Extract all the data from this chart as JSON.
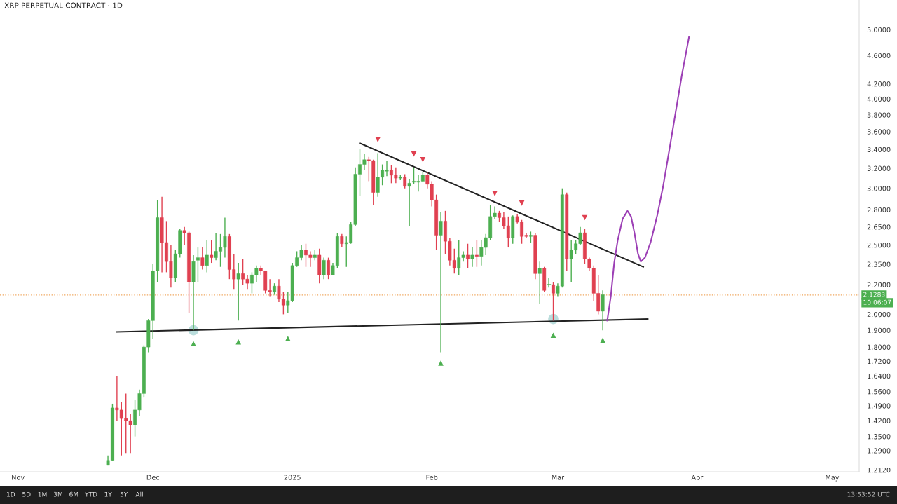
{
  "chart_data": {
    "type": "candlestick",
    "title": "XRP PERPETUAL CONTRACT · 1D",
    "log": true,
    "xlim": [
      "2024-10-28",
      "2025-05-07"
    ],
    "xticks": [
      {
        "value": "2024-11-01",
        "label": "Nov"
      },
      {
        "value": "2024-12-01",
        "label": "Dec"
      },
      {
        "value": "2025-01-01",
        "label": "2025"
      },
      {
        "value": "2025-02-01",
        "label": "Feb"
      },
      {
        "value": "2025-03-01",
        "label": "Mar"
      },
      {
        "value": "2025-04-01",
        "label": "Apr"
      },
      {
        "value": "2025-05-01",
        "label": "May"
      }
    ],
    "ylim": [
      1.205,
      5.5
    ],
    "yticks": [
      {
        "value": 1.212,
        "label": "1.2120"
      },
      {
        "value": 1.29,
        "label": "1.2900"
      },
      {
        "value": 1.35,
        "label": "1.3500"
      },
      {
        "value": 1.42,
        "label": "1.4200"
      },
      {
        "value": 1.49,
        "label": "1.4900"
      },
      {
        "value": 1.56,
        "label": "1.5600"
      },
      {
        "value": 1.64,
        "label": "1.6400"
      },
      {
        "value": 1.72,
        "label": "1.7200"
      },
      {
        "value": 1.8,
        "label": "1.8000"
      },
      {
        "value": 1.9,
        "label": "1.9000"
      },
      {
        "value": 2.0,
        "label": "2.0000"
      },
      {
        "value": 2.2,
        "label": "2.2000"
      },
      {
        "value": 2.35,
        "label": "2.3500"
      },
      {
        "value": 2.5,
        "label": "2.5000"
      },
      {
        "value": 2.65,
        "label": "2.6500"
      },
      {
        "value": 2.8,
        "label": "2.8000"
      },
      {
        "value": 3.0,
        "label": "3.0000"
      },
      {
        "value": 3.2,
        "label": "3.2000"
      },
      {
        "value": 3.4,
        "label": "3.4000"
      },
      {
        "value": 3.6,
        "label": "3.6000"
      },
      {
        "value": 3.8,
        "label": "3.8000"
      },
      {
        "value": 4.0,
        "label": "4.0000"
      },
      {
        "value": 4.2,
        "label": "4.2000"
      },
      {
        "value": 4.6,
        "label": "4.6000"
      },
      {
        "value": 5.0,
        "label": "5.0000"
      }
    ],
    "grid": false,
    "legend": false,
    "ref_lines": [
      {
        "axis": "y",
        "value": 2.1283,
        "label": "2.1283",
        "color": "#f0a860",
        "line_style": "dotted"
      }
    ],
    "annotations": [
      "10:06:07",
      "1D",
      "5D",
      "1M",
      "3M",
      "6M",
      "YTD",
      "1Y",
      "5Y",
      "All",
      "13:53:52 UTC"
    ],
    "series": [
      {
        "x": [
          "2024-11-21",
          "2024-11-22",
          "2024-11-23",
          "2024-11-24",
          "2024-11-25",
          "2024-11-26",
          "2024-11-27",
          "2024-11-28",
          "2024-11-29",
          "2024-11-30",
          "2024-12-01",
          "2024-12-02",
          "2024-12-03",
          "2024-12-04",
          "2024-12-05",
          "2024-12-06",
          "2024-12-07",
          "2024-12-08",
          "2024-12-09",
          "2024-12-10",
          "2024-12-11",
          "2024-12-12",
          "2024-12-13",
          "2024-12-14",
          "2024-12-15",
          "2024-12-16",
          "2024-12-17",
          "2024-12-18",
          "2024-12-19",
          "2024-12-20",
          "2024-12-21",
          "2024-12-22",
          "2024-12-23",
          "2024-12-24",
          "2024-12-25",
          "2024-12-26",
          "2024-12-27",
          "2024-12-28",
          "2024-12-29",
          "2024-12-30",
          "2024-12-31",
          "2025-01-01",
          "2025-01-02",
          "2025-01-03",
          "2025-01-04",
          "2025-01-05",
          "2025-01-06",
          "2025-01-07",
          "2025-01-08",
          "2025-01-09",
          "2025-01-10",
          "2025-01-11",
          "2025-01-12",
          "2025-01-13",
          "2025-01-14",
          "2025-01-15",
          "2025-01-16",
          "2025-01-17",
          "2025-01-18",
          "2025-01-19",
          "2025-01-20",
          "2025-01-21",
          "2025-01-22",
          "2025-01-23",
          "2025-01-24",
          "2025-01-25",
          "2025-01-26",
          "2025-01-27",
          "2025-01-28",
          "2025-01-29",
          "2025-01-30",
          "2025-01-31",
          "2025-02-01",
          "2025-02-02",
          "2025-02-03",
          "2025-02-04",
          "2025-02-05",
          "2025-02-06",
          "2025-02-07",
          "2025-02-08",
          "2025-02-09",
          "2025-02-10",
          "2025-02-11",
          "2025-02-12",
          "2025-02-13",
          "2025-02-14",
          "2025-02-15",
          "2025-02-16",
          "2025-02-17",
          "2025-02-18",
          "2025-02-19",
          "2025-02-20",
          "2025-02-21",
          "2025-02-22",
          "2025-02-23",
          "2025-02-24",
          "2025-02-25",
          "2025-02-26",
          "2025-02-27",
          "2025-02-28",
          "2025-03-01",
          "2025-03-02",
          "2025-03-03",
          "2025-03-04",
          "2025-03-05",
          "2025-03-06",
          "2025-03-07",
          "2025-03-08",
          "2025-03-09",
          "2025-03-10",
          "2025-03-11"
        ],
        "ohlc": [
          [
            1.23,
            1.27,
            1.23,
            1.25
          ],
          [
            1.25,
            1.5,
            1.25,
            1.48
          ],
          [
            1.48,
            1.64,
            1.42,
            1.47
          ],
          [
            1.47,
            1.51,
            1.27,
            1.43
          ],
          [
            1.43,
            1.55,
            1.28,
            1.42
          ],
          [
            1.42,
            1.45,
            1.28,
            1.4
          ],
          [
            1.4,
            1.52,
            1.35,
            1.47
          ],
          [
            1.47,
            1.57,
            1.44,
            1.55
          ],
          [
            1.55,
            1.81,
            1.53,
            1.8
          ],
          [
            1.8,
            1.97,
            1.77,
            1.96
          ],
          [
            1.96,
            2.35,
            1.85,
            2.3
          ],
          [
            2.3,
            2.89,
            2.22,
            2.73
          ],
          [
            2.73,
            2.92,
            2.29,
            2.52
          ],
          [
            2.52,
            2.7,
            2.29,
            2.37
          ],
          [
            2.37,
            2.5,
            2.18,
            2.25
          ],
          [
            2.25,
            2.46,
            2.22,
            2.43
          ],
          [
            2.43,
            2.63,
            2.4,
            2.62
          ],
          [
            2.62,
            2.65,
            2.5,
            2.6
          ],
          [
            2.6,
            2.61,
            2.01,
            2.22
          ],
          [
            2.22,
            2.42,
            1.9,
            2.37
          ],
          [
            2.38,
            2.48,
            2.22,
            2.4
          ],
          [
            2.4,
            2.48,
            2.31,
            2.34
          ],
          [
            2.34,
            2.54,
            2.29,
            2.42
          ],
          [
            2.42,
            2.54,
            2.36,
            2.4
          ],
          [
            2.4,
            2.6,
            2.38,
            2.45
          ],
          [
            2.45,
            2.59,
            2.33,
            2.48
          ],
          [
            2.48,
            2.73,
            2.4,
            2.57
          ],
          [
            2.57,
            2.59,
            2.24,
            2.31
          ],
          [
            2.31,
            2.43,
            2.17,
            2.24
          ],
          [
            2.24,
            2.36,
            1.96,
            2.28
          ],
          [
            2.28,
            2.39,
            2.2,
            2.24
          ],
          [
            2.24,
            2.27,
            2.17,
            2.21
          ],
          [
            2.21,
            2.29,
            2.14,
            2.27
          ],
          [
            2.27,
            2.34,
            2.22,
            2.32
          ],
          [
            2.32,
            2.34,
            2.27,
            2.3
          ],
          [
            2.3,
            2.3,
            2.14,
            2.16
          ],
          [
            2.16,
            2.24,
            2.12,
            2.15
          ],
          [
            2.15,
            2.21,
            2.13,
            2.19
          ],
          [
            2.19,
            2.24,
            2.08,
            2.1
          ],
          [
            2.1,
            2.15,
            2.0,
            2.06
          ],
          [
            2.06,
            2.15,
            2.01,
            2.09
          ],
          [
            2.09,
            2.36,
            2.08,
            2.34
          ],
          [
            2.34,
            2.45,
            2.33,
            2.4
          ],
          [
            2.4,
            2.5,
            2.38,
            2.46
          ],
          [
            2.46,
            2.51,
            2.33,
            2.42
          ],
          [
            2.42,
            2.45,
            2.33,
            2.4
          ],
          [
            2.4,
            2.46,
            2.38,
            2.42
          ],
          [
            2.42,
            2.47,
            2.21,
            2.27
          ],
          [
            2.27,
            2.4,
            2.24,
            2.38
          ],
          [
            2.38,
            2.4,
            2.24,
            2.27
          ],
          [
            2.27,
            2.36,
            2.27,
            2.34
          ],
          [
            2.34,
            2.6,
            2.32,
            2.57
          ],
          [
            2.57,
            2.59,
            2.48,
            2.51
          ],
          [
            2.51,
            2.57,
            2.33,
            2.52
          ],
          [
            2.52,
            2.69,
            2.51,
            2.67
          ],
          [
            2.67,
            3.21,
            2.66,
            3.14
          ],
          [
            3.14,
            3.41,
            2.93,
            3.24
          ],
          [
            3.24,
            3.35,
            3.18,
            3.29
          ],
          [
            3.29,
            3.32,
            3.07,
            3.28
          ],
          [
            3.28,
            3.29,
            2.84,
            2.96
          ],
          [
            2.96,
            3.36,
            2.92,
            3.11
          ],
          [
            3.11,
            3.24,
            3.03,
            3.18
          ],
          [
            3.17,
            3.28,
            3.12,
            3.18
          ],
          [
            3.18,
            3.23,
            3.05,
            3.13
          ],
          [
            3.13,
            3.21,
            3.05,
            3.1
          ],
          [
            3.1,
            3.13,
            3.08,
            3.11
          ],
          [
            3.11,
            3.14,
            3.0,
            3.02
          ],
          [
            3.02,
            3.09,
            2.66,
            3.05
          ],
          [
            3.06,
            3.21,
            3.04,
            3.07
          ],
          [
            3.06,
            3.13,
            2.97,
            3.07
          ],
          [
            3.07,
            3.16,
            3.06,
            3.13
          ],
          [
            3.13,
            3.16,
            3.0,
            3.04
          ],
          [
            3.04,
            3.07,
            2.83,
            2.89
          ],
          [
            2.89,
            2.94,
            2.46,
            2.58
          ],
          [
            2.58,
            2.78,
            1.77,
            2.7
          ],
          [
            2.7,
            2.79,
            2.43,
            2.53
          ],
          [
            2.53,
            2.56,
            2.34,
            2.38
          ],
          [
            2.38,
            2.47,
            2.28,
            2.32
          ],
          [
            2.32,
            2.54,
            2.27,
            2.4
          ],
          [
            2.4,
            2.45,
            2.37,
            2.42
          ],
          [
            2.42,
            2.51,
            2.32,
            2.39
          ],
          [
            2.39,
            2.48,
            2.33,
            2.42
          ],
          [
            2.42,
            2.54,
            2.33,
            2.41
          ],
          [
            2.41,
            2.54,
            2.34,
            2.48
          ],
          [
            2.48,
            2.59,
            2.42,
            2.56
          ],
          [
            2.56,
            2.84,
            2.54,
            2.74
          ],
          [
            2.74,
            2.83,
            2.72,
            2.77
          ],
          [
            2.77,
            2.79,
            2.69,
            2.73
          ],
          [
            2.73,
            2.78,
            2.63,
            2.66
          ],
          [
            2.66,
            2.74,
            2.48,
            2.56
          ],
          [
            2.56,
            2.75,
            2.51,
            2.74
          ],
          [
            2.74,
            2.76,
            2.68,
            2.69
          ],
          [
            2.69,
            2.71,
            2.51,
            2.57
          ],
          [
            2.58,
            2.6,
            2.56,
            2.57
          ],
          [
            2.57,
            2.61,
            2.52,
            2.58
          ],
          [
            2.58,
            2.6,
            2.24,
            2.28
          ],
          [
            2.28,
            2.37,
            2.07,
            2.32
          ],
          [
            2.32,
            2.33,
            2.15,
            2.16
          ],
          [
            2.2,
            2.25,
            2.18,
            2.2
          ],
          [
            2.2,
            2.22,
            1.96,
            2.14
          ],
          [
            2.14,
            2.21,
            2.12,
            2.19
          ],
          [
            2.19,
            3.0,
            2.18,
            2.94
          ],
          [
            2.94,
            2.96,
            2.3,
            2.39
          ],
          [
            2.39,
            2.54,
            2.22,
            2.46
          ],
          [
            2.46,
            2.54,
            2.43,
            2.51
          ],
          [
            2.51,
            2.65,
            2.5,
            2.6
          ],
          [
            2.6,
            2.63,
            2.35,
            2.39
          ],
          [
            2.39,
            2.4,
            2.3,
            2.32
          ],
          [
            2.32,
            2.34,
            2.09,
            2.14
          ],
          [
            2.14,
            2.27,
            2.0,
            2.02
          ],
          [
            2.02,
            2.16,
            1.9,
            2.13
          ]
        ],
        "colors": [
          "#4caf50",
          "#4caf50",
          "#e04050",
          "#e04050",
          "#e04050",
          "#e04050",
          "#4caf50",
          "#4caf50",
          "#4caf50",
          "#4caf50",
          "#4caf50",
          "#4caf50",
          "#e04050",
          "#e04050",
          "#e04050",
          "#4caf50",
          "#4caf50",
          "#e04050",
          "#e04050",
          "#4caf50",
          "#4caf50",
          "#e04050",
          "#4caf50",
          "#e04050",
          "#4caf50",
          "#4caf50",
          "#4caf50",
          "#e04050",
          "#e04050",
          "#4caf50",
          "#e04050",
          "#e04050",
          "#4caf50",
          "#4caf50",
          "#e04050",
          "#e04050",
          "#e04050",
          "#4caf50",
          "#e04050",
          "#e04050",
          "#4caf50",
          "#4caf50",
          "#4caf50",
          "#4caf50",
          "#e04050",
          "#e04050",
          "#4caf50",
          "#e04050",
          "#4caf50",
          "#e04050",
          "#4caf50",
          "#4caf50",
          "#e04050",
          "#4caf50",
          "#4caf50",
          "#4caf50",
          "#4caf50",
          "#4caf50",
          "#e04050",
          "#e04050",
          "#4caf50",
          "#4caf50",
          "#4caf50",
          "#e04050",
          "#e04050",
          "#4caf50",
          "#e04050",
          "#4caf50",
          "#4caf50",
          "#4caf50",
          "#4caf50",
          "#e04050",
          "#e04050",
          "#e04050",
          "#4caf50",
          "#e04050",
          "#e04050",
          "#e04050",
          "#4caf50",
          "#4caf50",
          "#e04050",
          "#4caf50",
          "#e04050",
          "#4caf50",
          "#4caf50",
          "#4caf50",
          "#4caf50",
          "#e04050",
          "#e04050",
          "#e04050",
          "#4caf50",
          "#e04050",
          "#e04050",
          "#e04050",
          "#4caf50",
          "#e04050",
          "#4caf50",
          "#e04050",
          "#4caf50",
          "#e04050",
          "#4caf50",
          "#4caf50",
          "#e04050",
          "#4caf50",
          "#4caf50",
          "#4caf50",
          "#e04050",
          "#e04050",
          "#e04050",
          "#e04050",
          "#4caf50"
        ]
      },
      {
        "type": "line",
        "color": "#222222",
        "line_style": "solid",
        "marker": "none",
        "x": [
          "2025-01-16",
          "2025-03-20"
        ],
        "values": [
          3.47,
          2.33
        ]
      },
      {
        "type": "line",
        "color": "#222222",
        "line_style": "solid",
        "marker": "none",
        "x": [
          "2024-11-23",
          "2025-03-21"
        ],
        "values": [
          1.89,
          1.97
        ]
      },
      {
        "type": "line",
        "color": "#9c3fb5",
        "line_style": "solid",
        "marker": "none",
        "x": [
          "2025-03-12T00:00",
          "2025-03-12T19:00",
          "2025-03-13T13:00",
          "2025-03-14T08:00",
          "2025-03-15T10:00",
          "2025-03-16T12:00",
          "2025-03-17T07:00",
          "2025-03-18T01:00",
          "2025-03-18T20:00",
          "2025-03-19T11:00",
          "2025-03-20T09:00",
          "2025-03-21T15:00",
          "2025-03-23T04:00",
          "2025-03-24T10:00",
          "2025-03-26T06:00",
          "2025-03-28T14:00",
          "2025-03-30T04:00"
        ],
        "values": [
          1.96,
          2.12,
          2.36,
          2.54,
          2.72,
          2.79,
          2.74,
          2.6,
          2.43,
          2.37,
          2.4,
          2.52,
          2.76,
          3.02,
          3.53,
          4.32,
          4.88
        ]
      },
      {
        "type": "scatter",
        "color": "#e04050",
        "marker": "triangle_down",
        "x": [
          "2025-01-20",
          "2025-01-28",
          "2025-01-30",
          "2025-02-15",
          "2025-02-21",
          "2025-03-07"
        ],
        "values": [
          3.51,
          3.35,
          3.29,
          2.95,
          2.86,
          2.73
        ]
      },
      {
        "type": "scatter",
        "color": "#4caf50",
        "marker": "triangle",
        "x": [
          "2024-12-10",
          "2024-12-20",
          "2024-12-31",
          "2025-02-03",
          "2025-02-28",
          "2025-03-11"
        ],
        "values": [
          1.82,
          1.83,
          1.85,
          1.71,
          1.87,
          1.84
        ]
      },
      {
        "type": "scatter",
        "color": "#8cc7c4",
        "marker": "circle",
        "x": [
          "2024-12-10",
          "2025-02-28"
        ],
        "values": [
          1.9,
          1.97
        ]
      }
    ]
  }
}
